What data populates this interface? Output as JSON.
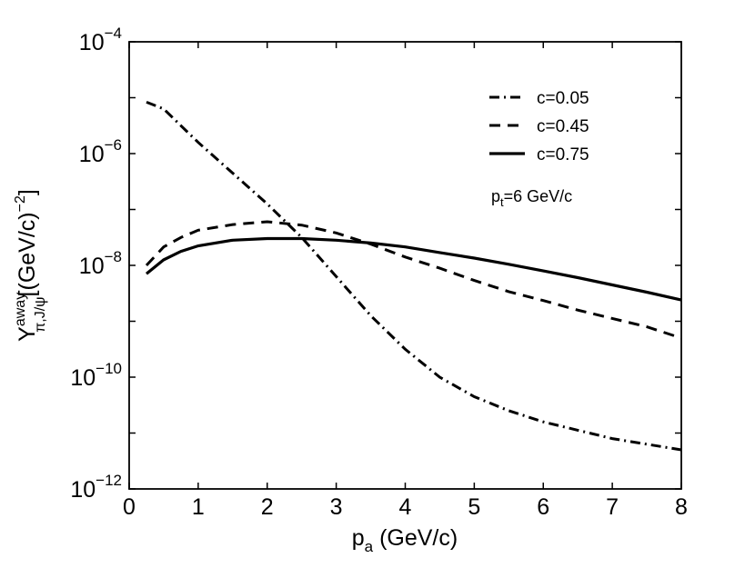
{
  "chart_data": {
    "type": "line",
    "title": "",
    "xlabel": {
      "main": "p",
      "sub": "a",
      "rest": " (GeV/c)"
    },
    "ylabel": {
      "main": "Y",
      "sup": "away",
      "sub": "π,J/ψ",
      "rest": "[(GeV/c)",
      "rest_sup": "−2",
      "close": "]"
    },
    "xlim": [
      0,
      8
    ],
    "ylim_log10": [
      -12,
      -4
    ],
    "xticks": [
      0,
      1,
      2,
      3,
      4,
      5,
      6,
      7,
      8
    ],
    "xtick_labels": [
      "0",
      "1",
      "2",
      "3",
      "4",
      "5",
      "6",
      "7",
      "8"
    ],
    "yticks_log10": [
      -12,
      -10,
      -8,
      -6,
      -4
    ],
    "ytick_labels": [
      {
        "base": "10",
        "exp": "−12"
      },
      {
        "base": "10",
        "exp": "−10"
      },
      {
        "base": "10",
        "exp": "−8"
      },
      {
        "base": "10",
        "exp": "−6"
      },
      {
        "base": "10",
        "exp": "−4"
      }
    ],
    "grid": false,
    "legend_position": "top-right",
    "annotation": {
      "main": "p",
      "sub": "t",
      "rest": "=6 GeV/c"
    },
    "series": [
      {
        "name": "c=0.05",
        "style": "dashdot",
        "x": [
          0.25,
          0.5,
          0.75,
          1,
          1.5,
          2,
          2.5,
          3,
          3.5,
          4,
          4.5,
          5,
          5.5,
          6,
          6.5,
          7,
          7.5,
          8
        ],
        "log10_y": [
          -5.08,
          -5.2,
          -5.5,
          -5.8,
          -6.35,
          -6.9,
          -7.5,
          -8.2,
          -8.9,
          -9.5,
          -10.0,
          -10.35,
          -10.6,
          -10.8,
          -10.95,
          -11.1,
          -11.2,
          -11.3
        ]
      },
      {
        "name": "c=0.45",
        "style": "dashed",
        "x": [
          0.25,
          0.5,
          0.75,
          1,
          1.5,
          2,
          2.5,
          3,
          3.5,
          4,
          4.5,
          5,
          5.5,
          6,
          6.5,
          7,
          7.5,
          8
        ],
        "log10_y": [
          -8.0,
          -7.67,
          -7.5,
          -7.37,
          -7.27,
          -7.22,
          -7.28,
          -7.42,
          -7.62,
          -7.85,
          -8.05,
          -8.27,
          -8.47,
          -8.63,
          -8.8,
          -8.95,
          -9.1,
          -9.3
        ]
      },
      {
        "name": "c=0.75",
        "style": "solid",
        "x": [
          0.25,
          0.5,
          0.75,
          1,
          1.5,
          2,
          2.5,
          3,
          3.5,
          4,
          4.5,
          5,
          5.5,
          6,
          6.5,
          7,
          7.5,
          8
        ],
        "log10_y": [
          -8.15,
          -7.9,
          -7.75,
          -7.65,
          -7.55,
          -7.52,
          -7.52,
          -7.55,
          -7.6,
          -7.67,
          -7.77,
          -7.87,
          -7.98,
          -8.1,
          -8.22,
          -8.35,
          -8.48,
          -8.62
        ]
      }
    ]
  }
}
